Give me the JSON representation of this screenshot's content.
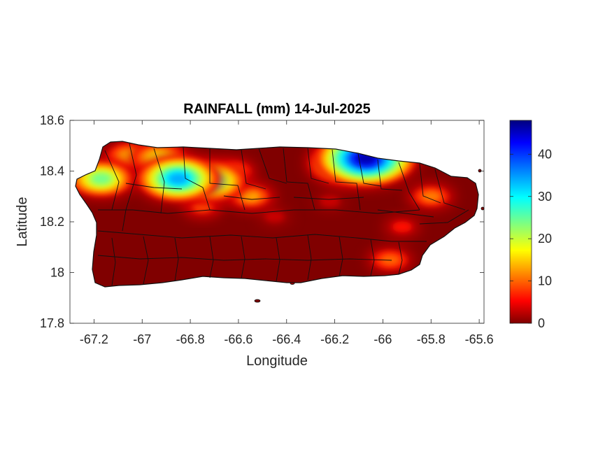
{
  "chart_data": {
    "type": "heatmap",
    "title": "RAINFALL (mm) 14-Jul-2025",
    "xlabel": "Longitude",
    "ylabel": "Latitude",
    "xlim": [
      -67.3,
      -65.58
    ],
    "ylim": [
      17.8,
      18.6
    ],
    "xticks": [
      -67.2,
      -67,
      -66.8,
      -66.6,
      -66.4,
      -66.2,
      -66,
      -65.8,
      -65.6
    ],
    "xtick_labels": [
      "-67.2",
      "-67",
      "-66.8",
      "-66.6",
      "-66.4",
      "-66.2",
      "-66",
      "-65.8",
      "-65.6"
    ],
    "yticks": [
      17.8,
      18,
      18.2,
      18.4,
      18.6
    ],
    "ytick_labels": [
      "17.8",
      "18",
      "18.2",
      "18.4",
      "18.6"
    ],
    "colorbar": {
      "range": [
        0,
        48
      ],
      "ticks": [
        0,
        10,
        20,
        30,
        40
      ],
      "tick_labels": [
        "0",
        "10",
        "20",
        "30",
        "40"
      ],
      "colormap": "jet"
    },
    "rain_cells": [
      {
        "lon": -66.07,
        "lat": 18.45,
        "mm": 46
      },
      {
        "lon": -66.15,
        "lat": 18.43,
        "mm": 30
      },
      {
        "lon": -66.85,
        "lat": 18.37,
        "mm": 34
      },
      {
        "lon": -66.72,
        "lat": 18.36,
        "mm": 28
      },
      {
        "lon": -67.17,
        "lat": 18.37,
        "mm": 24
      },
      {
        "lon": -66.93,
        "lat": 18.45,
        "mm": 18
      },
      {
        "lon": -67.05,
        "lat": 18.46,
        "mm": 14
      },
      {
        "lon": -66.55,
        "lat": 18.3,
        "mm": 13
      },
      {
        "lon": -66.62,
        "lat": 18.4,
        "mm": 10
      },
      {
        "lon": -66.75,
        "lat": 18.26,
        "mm": 9
      },
      {
        "lon": -65.8,
        "lat": 18.3,
        "mm": 11
      },
      {
        "lon": -65.92,
        "lat": 18.18,
        "mm": 6
      },
      {
        "lon": -65.97,
        "lat": 18.05,
        "mm": 10
      },
      {
        "lon": -66.22,
        "lat": 18.28,
        "mm": 3
      },
      {
        "lon": -66.45,
        "lat": 18.22,
        "mm": 3
      }
    ]
  }
}
